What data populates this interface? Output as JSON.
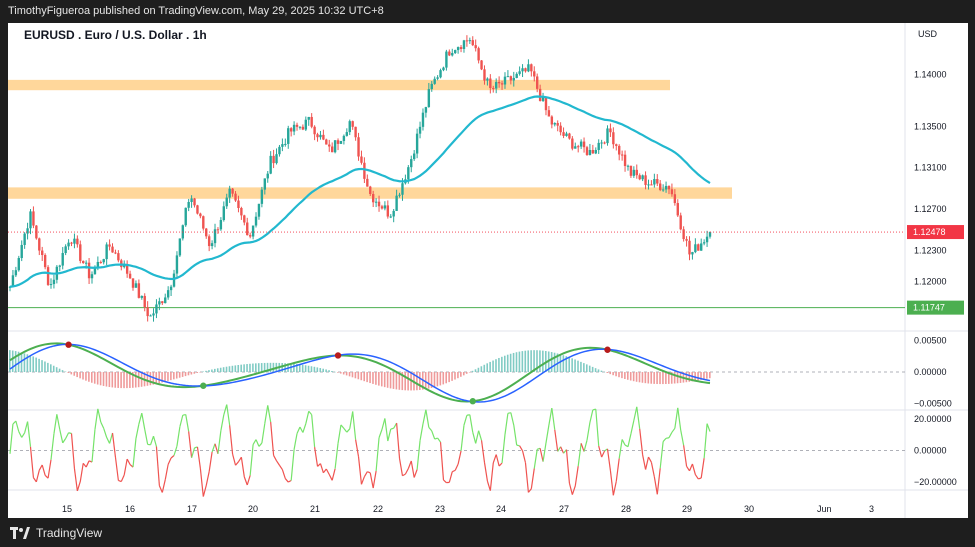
{
  "header": {
    "published_text": "TimothyFigueroa published on TradingView.com, May 29, 2025 10:32 UTC+8"
  },
  "footer": {
    "brand": "TradingView"
  },
  "colors": {
    "up": "#26a69a",
    "down": "#ef5350",
    "ma": "#22b8cf",
    "zone": "#ffd08a",
    "price_label_bg": "#f23645",
    "support_label_bg": "#4caf50",
    "wave_green": "#4caf50",
    "wave_blue": "#2962ff",
    "wave_red": "#b71c1c",
    "osc_green": "#76e36a",
    "osc_red": "#ef5350"
  },
  "chart_data": [
    {
      "type": "candlestick",
      "title": "EURUSD . Euro / U.S. Dollar . 1h",
      "currency": "USD",
      "xlabels": [
        "15",
        "16",
        "17",
        "20",
        "21",
        "22",
        "23",
        "24",
        "27",
        "28",
        "29",
        "30",
        "Jun",
        "3"
      ],
      "yticks": [
        1.12,
        1.123,
        1.127,
        1.131,
        1.135,
        1.14
      ],
      "ylim": [
        1.1155,
        1.145
      ],
      "last_price": 1.12478,
      "support_level": 1.11747,
      "resistance_zones": [
        {
          "from": "15",
          "to": "28",
          "low": 1.1385,
          "high": 1.1395
        },
        {
          "from": "15",
          "to": "29",
          "low": 1.128,
          "high": 1.1291
        }
      ],
      "close_path": [
        [
          "15",
          1.1195
        ],
        [
          "15",
          1.1265
        ],
        [
          "16",
          1.1195
        ],
        [
          "16",
          1.1245
        ],
        [
          "16",
          1.1205
        ],
        [
          "16",
          1.1235
        ],
        [
          "17",
          1.1205
        ],
        [
          "17",
          1.1165
        ],
        [
          "17",
          1.1195
        ],
        [
          "20",
          1.1285
        ],
        [
          "20",
          1.1235
        ],
        [
          "20",
          1.1285
        ],
        [
          "21",
          1.1245
        ],
        [
          "21",
          1.1315
        ],
        [
          "21",
          1.1345
        ],
        [
          "22",
          1.1355
        ],
        [
          "22",
          1.1325
        ],
        [
          "22",
          1.1355
        ],
        [
          "23",
          1.1285
        ],
        [
          "23",
          1.1265
        ],
        [
          "23",
          1.1315
        ],
        [
          "24",
          1.1385
        ],
        [
          "24",
          1.1425
        ],
        [
          "24",
          1.1435
        ],
        [
          "27",
          1.1385
        ],
        [
          "27",
          1.1395
        ],
        [
          "27",
          1.1405
        ],
        [
          "28",
          1.1355
        ],
        [
          "28",
          1.1335
        ],
        [
          "28",
          1.1325
        ],
        [
          "28",
          1.1345
        ],
        [
          "29",
          1.1305
        ],
        [
          "29",
          1.1295
        ],
        [
          "29",
          1.1292
        ],
        [
          "29",
          1.1225
        ],
        [
          "29",
          1.1248
        ]
      ]
    },
    {
      "type": "line",
      "yticks": [
        0.005,
        0.0,
        -0.005
      ],
      "ytick_labels": [
        "0.00500",
        "0.00000",
        "−0.00500"
      ],
      "ylim": [
        -0.0057,
        0.0065
      ]
    },
    {
      "type": "line",
      "yticks": [
        20.0,
        0.0,
        -20.0
      ],
      "ytick_labels": [
        "20.00000",
        "0.00000",
        "−20.00000"
      ],
      "ylim": [
        -25,
        25
      ]
    }
  ]
}
